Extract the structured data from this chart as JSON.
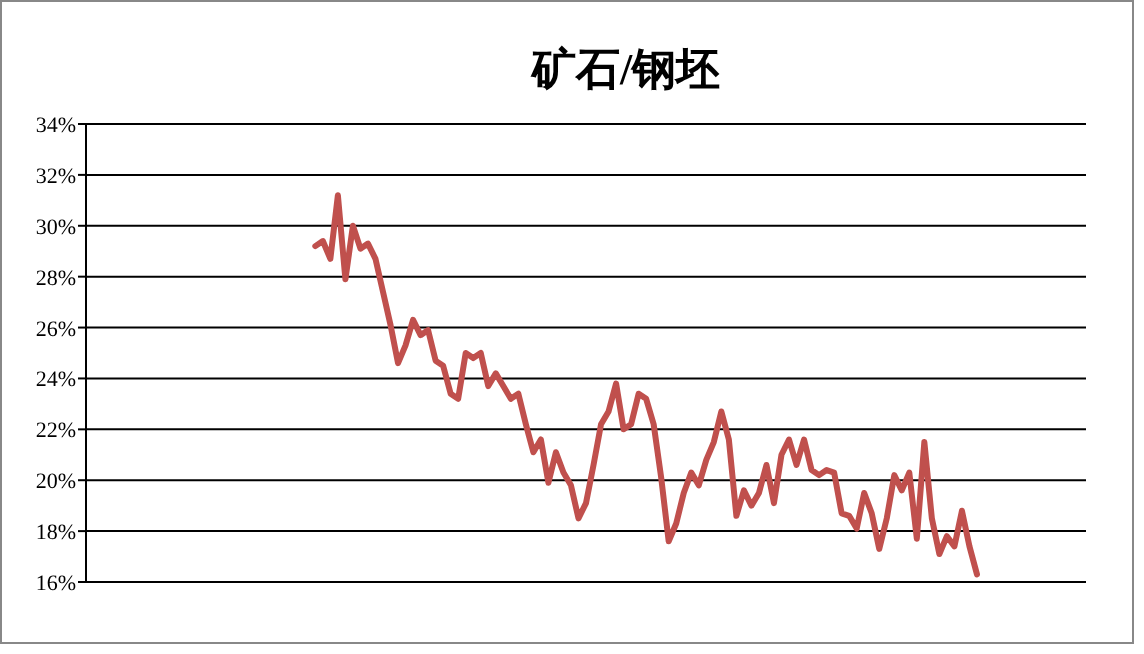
{
  "chart_data": {
    "type": "line",
    "title": "矿石/钢坯",
    "categories": [
      null,
      null,
      null,
      null,
      null,
      null,
      null,
      null,
      null,
      null,
      null,
      null,
      null,
      null,
      null,
      null,
      null,
      null,
      null,
      null,
      null,
      null,
      null,
      null,
      null,
      null,
      null,
      null,
      null,
      null,
      null,
      null,
      null,
      null,
      null,
      null,
      null,
      null,
      null,
      null,
      null,
      null,
      null,
      null,
      null,
      null,
      null,
      null,
      null,
      null,
      null,
      null,
      null,
      null,
      null,
      null,
      null,
      null,
      null,
      null,
      null,
      null,
      null,
      null,
      null,
      null,
      null,
      null,
      null,
      null,
      null,
      null,
      null,
      null,
      null,
      null,
      null,
      null,
      null,
      null,
      null,
      null,
      null,
      null,
      null,
      null,
      null,
      null,
      null,
      null,
      null,
      null,
      null,
      null,
      null,
      null,
      null,
      null,
      null,
      null,
      null,
      null,
      null,
      null,
      null,
      null,
      null,
      null,
      null,
      null,
      null,
      null,
      null,
      null,
      null,
      null,
      null,
      null,
      null,
      null,
      null,
      null,
      null,
      null,
      null,
      null,
      null,
      null,
      null,
      null,
      null,
      null,
      null
    ],
    "ylim": [
      16,
      34
    ],
    "yticks": [
      {
        "value": 16,
        "label": "16%"
      },
      {
        "value": 18,
        "label": "18%"
      },
      {
        "value": 20,
        "label": "20%"
      },
      {
        "value": 22,
        "label": "22%"
      },
      {
        "value": 24,
        "label": "24%"
      },
      {
        "value": 26,
        "label": "26%"
      },
      {
        "value": 28,
        "label": "28%"
      },
      {
        "value": 30,
        "label": "30%"
      },
      {
        "value": 32,
        "label": "32%"
      },
      {
        "value": 34,
        "label": "34%"
      }
    ],
    "grid": "y",
    "marker": "none",
    "line_style": "solid",
    "series": [
      {
        "color": "#c0504d",
        "values": [
          null,
          null,
          null,
          null,
          null,
          null,
          null,
          null,
          null,
          null,
          null,
          null,
          null,
          null,
          null,
          null,
          null,
          null,
          null,
          null,
          null,
          null,
          null,
          null,
          null,
          null,
          null,
          null,
          null,
          null,
          29.2,
          29.4,
          28.7,
          31.2,
          27.9,
          30.0,
          29.1,
          29.3,
          28.7,
          27.4,
          26.1,
          24.6,
          25.3,
          26.3,
          25.7,
          25.9,
          24.7,
          24.5,
          23.4,
          23.2,
          25.0,
          24.8,
          25.0,
          23.7,
          24.2,
          23.7,
          23.2,
          23.4,
          22.2,
          21.1,
          21.6,
          19.9,
          21.1,
          20.3,
          19.8,
          18.5,
          19.1,
          20.6,
          22.2,
          22.7,
          23.8,
          22.0,
          22.2,
          23.4,
          23.2,
          22.2,
          20.1,
          17.6,
          18.3,
          19.5,
          20.3,
          19.8,
          20.8,
          21.5,
          22.7,
          21.6,
          18.6,
          19.6,
          19.0,
          19.5,
          20.6,
          19.1,
          21.0,
          21.6,
          20.6,
          21.6,
          20.4,
          20.2,
          20.4,
          20.3,
          18.7,
          18.6,
          18.1,
          19.5,
          18.7,
          17.3,
          18.5,
          20.2,
          19.6,
          20.3,
          17.7,
          21.5,
          18.5,
          17.1,
          17.8,
          17.4,
          18.8,
          17.4,
          16.3,
          null,
          null,
          null,
          null,
          null,
          null,
          null,
          null,
          null,
          null,
          null,
          null,
          null,
          null
        ]
      }
    ]
  }
}
